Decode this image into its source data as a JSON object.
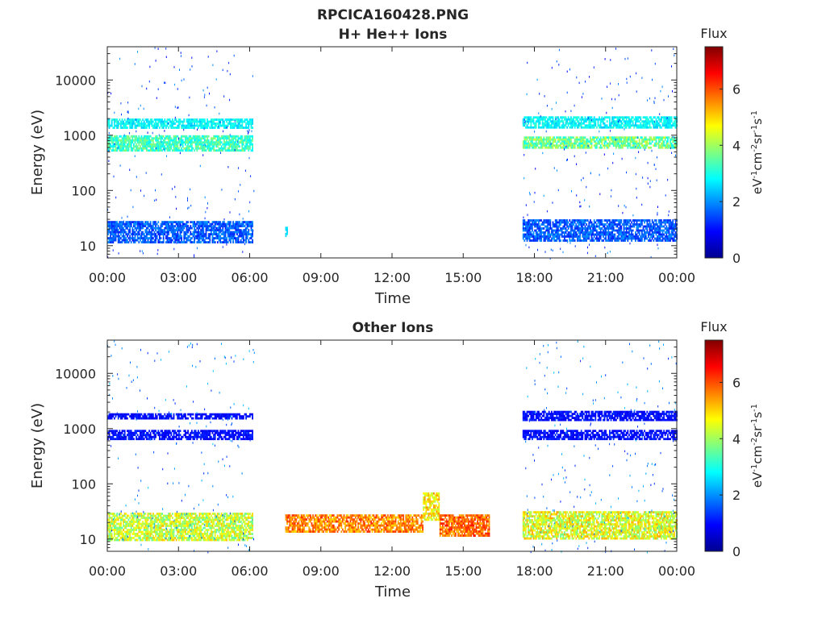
{
  "figure": {
    "title": "RPCICA160428.PNG"
  },
  "chart_data": [
    {
      "type": "heatmap",
      "title": "H+ He++ Ions",
      "xlabel": "Time",
      "ylabel": "Energy (eV)",
      "x_ticks": [
        "00:00",
        "03:00",
        "06:00",
        "09:00",
        "12:00",
        "15:00",
        "18:00",
        "21:00",
        "00:00"
      ],
      "xlim_hours": [
        0,
        24
      ],
      "y_ticks": [
        "10",
        "100",
        "1000",
        "10000"
      ],
      "y_tick_values": [
        10,
        100,
        1000,
        10000
      ],
      "ylim": [
        6,
        40000
      ],
      "y_scale": "log",
      "colorbar": {
        "label": "Flux",
        "units": "eV-1cm-2sr-1s-1",
        "ticks": [
          "0",
          "2",
          "4",
          "6"
        ],
        "tick_values": [
          0,
          2,
          4,
          6
        ],
        "range": [
          0,
          7.5
        ],
        "colormap": "jet"
      },
      "regions": [
        {
          "t_start": 0.0,
          "t_end": 6.1,
          "e_min": 12,
          "e_max": 28,
          "flux": 1.6,
          "spread": 0.5
        },
        {
          "t_start": 0.0,
          "t_end": 6.1,
          "e_min": 550,
          "e_max": 1000,
          "flux": 3.3,
          "spread": 0.6
        },
        {
          "t_start": 0.0,
          "t_end": 6.1,
          "e_min": 1400,
          "e_max": 2000,
          "flux": 2.8,
          "spread": 0.4
        },
        {
          "t_start": 7.5,
          "t_end": 7.6,
          "e_min": 15,
          "e_max": 22,
          "flux": 2.5,
          "spread": 0.2
        },
        {
          "t_start": 17.5,
          "t_end": 24.0,
          "e_min": 12,
          "e_max": 30,
          "flux": 1.6,
          "spread": 0.5
        },
        {
          "t_start": 17.5,
          "t_end": 24.0,
          "e_min": 600,
          "e_max": 950,
          "flux": 3.6,
          "spread": 0.8
        },
        {
          "t_start": 17.5,
          "t_end": 24.0,
          "e_min": 1400,
          "e_max": 2200,
          "flux": 2.8,
          "spread": 0.4
        }
      ],
      "scatter_windows": [
        {
          "t_start": 0.0,
          "t_end": 6.2,
          "flux": 1.5
        },
        {
          "t_start": 17.5,
          "t_end": 24.0,
          "flux": 1.5
        }
      ]
    },
    {
      "type": "heatmap",
      "title": "Other Ions",
      "xlabel": "Time",
      "ylabel": "Energy (eV)",
      "x_ticks": [
        "00:00",
        "03:00",
        "06:00",
        "09:00",
        "12:00",
        "15:00",
        "18:00",
        "21:00",
        "00:00"
      ],
      "xlim_hours": [
        0,
        24
      ],
      "y_ticks": [
        "10",
        "100",
        "1000",
        "10000"
      ],
      "y_tick_values": [
        10,
        100,
        1000,
        10000
      ],
      "ylim": [
        6,
        40000
      ],
      "y_scale": "log",
      "colorbar": {
        "label": "Flux",
        "units": "eV-1cm-2sr-1s-1",
        "ticks": [
          "0",
          "2",
          "4",
          "6"
        ],
        "tick_values": [
          0,
          2,
          4,
          6
        ],
        "range": [
          0,
          7.5
        ],
        "colormap": "jet"
      },
      "regions": [
        {
          "t_start": 0.0,
          "t_end": 6.1,
          "e_min": 10,
          "e_max": 30,
          "flux": 4.3,
          "spread": 0.9
        },
        {
          "t_start": 0.0,
          "t_end": 6.1,
          "e_min": 650,
          "e_max": 950,
          "flux": 1.0,
          "spread": 0.3
        },
        {
          "t_start": 0.0,
          "t_end": 6.1,
          "e_min": 1500,
          "e_max": 1900,
          "flux": 1.0,
          "spread": 0.3
        },
        {
          "t_start": 7.5,
          "t_end": 13.3,
          "e_min": 14,
          "e_max": 28,
          "flux": 5.6,
          "spread": 0.7
        },
        {
          "t_start": 13.3,
          "t_end": 14.0,
          "e_min": 22,
          "e_max": 70,
          "flux": 4.8,
          "spread": 0.8
        },
        {
          "t_start": 14.0,
          "t_end": 16.1,
          "e_min": 12,
          "e_max": 28,
          "flux": 5.8,
          "spread": 0.7
        },
        {
          "t_start": 17.5,
          "t_end": 24.0,
          "e_min": 10,
          "e_max": 32,
          "flux": 4.5,
          "spread": 0.9
        },
        {
          "t_start": 17.5,
          "t_end": 24.0,
          "e_min": 650,
          "e_max": 950,
          "flux": 1.0,
          "spread": 0.3
        },
        {
          "t_start": 17.5,
          "t_end": 24.0,
          "e_min": 1500,
          "e_max": 2100,
          "flux": 1.0,
          "spread": 0.3
        }
      ],
      "scatter_windows": [
        {
          "t_start": 0.0,
          "t_end": 6.2,
          "flux": 1.8
        },
        {
          "t_start": 17.5,
          "t_end": 24.0,
          "flux": 1.8
        }
      ]
    }
  ]
}
